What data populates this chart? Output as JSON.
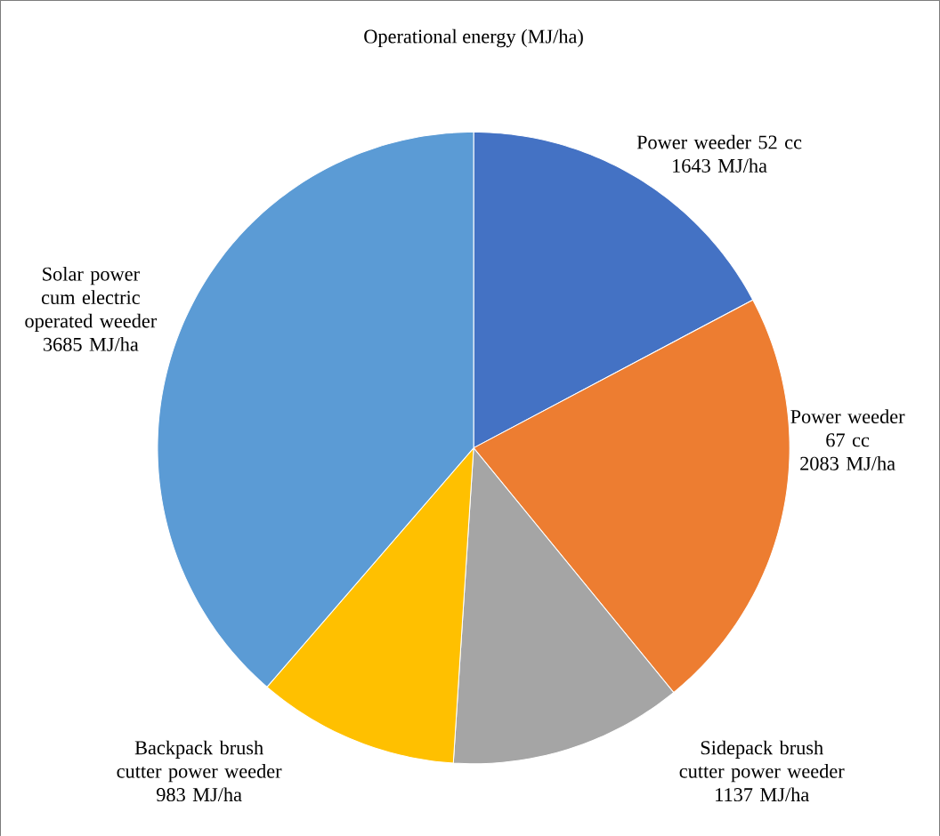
{
  "chart_data": {
    "type": "pie",
    "title": "Operational  energy (MJ/ha)",
    "categories": [
      "Power weeder 52 cc",
      "Power weeder 67 cc",
      "Sidepack brush cutter power weeder",
      "Backpack brush cutter power weeder",
      "Solar power cum electric operated weeder"
    ],
    "values": [
      1643,
      2083,
      1137,
      983,
      3685
    ],
    "value_labels": [
      "1643 MJ/ha",
      "2083 MJ/ha",
      "1137 MJ/ha",
      "983 MJ/ha",
      "3685 MJ/ha"
    ],
    "colors": [
      "#4472c4",
      "#ed7d31",
      "#a5a5a5",
      "#ffc000",
      "#5b9bd5"
    ]
  }
}
